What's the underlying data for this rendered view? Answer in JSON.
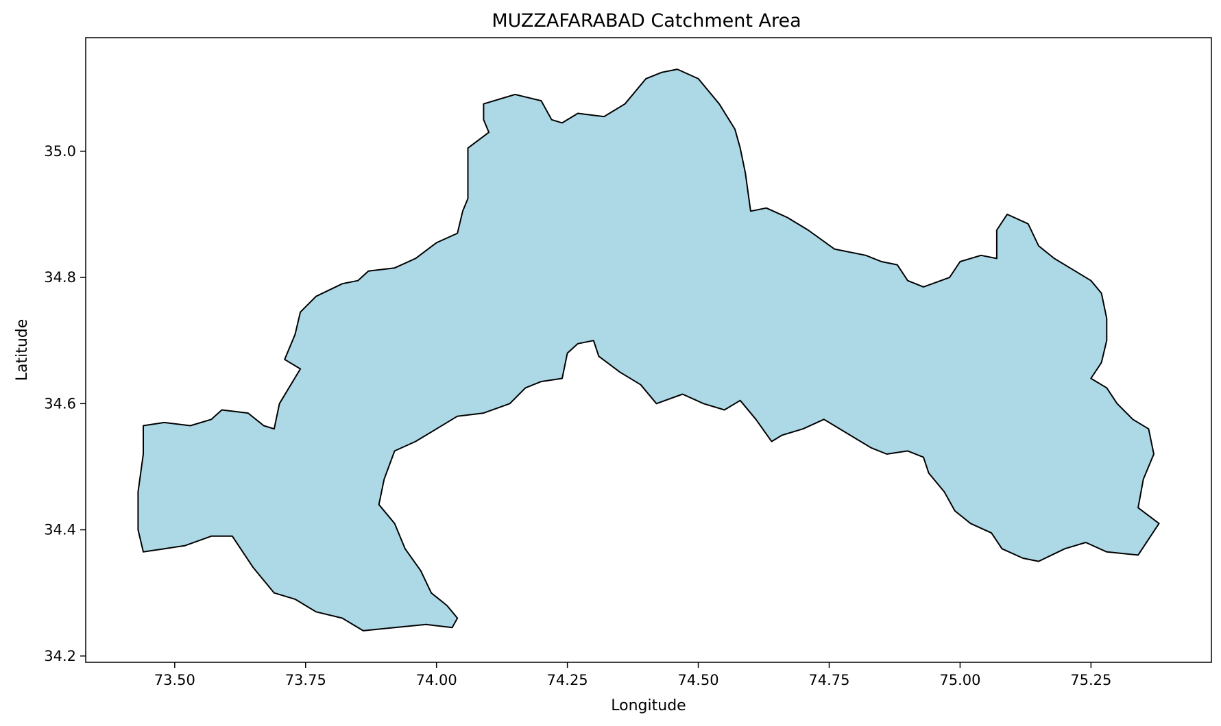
{
  "chart_data": {
    "type": "map",
    "title": "MUZZAFARABAD Catchment Area",
    "xlabel": "Longitude",
    "ylabel": "Latitude",
    "xlim": [
      73.33,
      75.48
    ],
    "ylim": [
      34.19,
      35.18
    ],
    "xticks": [
      73.5,
      73.75,
      74.0,
      74.25,
      74.5,
      74.75,
      75.0,
      75.25
    ],
    "xtick_labels": [
      "73.50",
      "73.75",
      "74.00",
      "74.25",
      "74.50",
      "74.75",
      "75.00",
      "75.25"
    ],
    "yticks": [
      34.2,
      34.4,
      34.6,
      34.8,
      35.0
    ],
    "ytick_labels": [
      "34.2",
      "34.4",
      "34.6",
      "34.8",
      "35.0"
    ],
    "grid": false,
    "fill_color": "#add8e6",
    "edge_color": "#000000",
    "boundary": [
      [
        73.44,
        34.565
      ],
      [
        73.48,
        34.57
      ],
      [
        73.53,
        34.565
      ],
      [
        73.57,
        34.575
      ],
      [
        73.59,
        34.59
      ],
      [
        73.64,
        34.585
      ],
      [
        73.67,
        34.565
      ],
      [
        73.69,
        34.56
      ],
      [
        73.7,
        34.6
      ],
      [
        73.74,
        34.655
      ],
      [
        73.71,
        34.67
      ],
      [
        73.73,
        34.71
      ],
      [
        73.74,
        34.745
      ],
      [
        73.77,
        34.77
      ],
      [
        73.82,
        34.79
      ],
      [
        73.85,
        34.795
      ],
      [
        73.87,
        34.81
      ],
      [
        73.92,
        34.815
      ],
      [
        73.96,
        34.83
      ],
      [
        74.0,
        34.855
      ],
      [
        74.04,
        34.87
      ],
      [
        74.05,
        34.905
      ],
      [
        74.06,
        34.925
      ],
      [
        74.06,
        35.005
      ],
      [
        74.1,
        35.03
      ],
      [
        74.09,
        35.05
      ],
      [
        74.09,
        35.075
      ],
      [
        74.13,
        35.085
      ],
      [
        74.15,
        35.09
      ],
      [
        74.2,
        35.08
      ],
      [
        74.22,
        35.05
      ],
      [
        74.24,
        35.045
      ],
      [
        74.27,
        35.06
      ],
      [
        74.32,
        35.055
      ],
      [
        74.36,
        35.075
      ],
      [
        74.4,
        35.115
      ],
      [
        74.43,
        35.125
      ],
      [
        74.46,
        35.13
      ],
      [
        74.5,
        35.115
      ],
      [
        74.54,
        35.075
      ],
      [
        74.57,
        35.035
      ],
      [
        74.58,
        35.005
      ],
      [
        74.59,
        34.965
      ],
      [
        74.6,
        34.905
      ],
      [
        74.63,
        34.91
      ],
      [
        74.67,
        34.895
      ],
      [
        74.71,
        34.875
      ],
      [
        74.76,
        34.845
      ],
      [
        74.82,
        34.835
      ],
      [
        74.85,
        34.825
      ],
      [
        74.88,
        34.82
      ],
      [
        74.9,
        34.795
      ],
      [
        74.93,
        34.785
      ],
      [
        74.98,
        34.8
      ],
      [
        75.0,
        34.825
      ],
      [
        75.04,
        34.835
      ],
      [
        75.07,
        34.83
      ],
      [
        75.07,
        34.875
      ],
      [
        75.09,
        34.9
      ],
      [
        75.13,
        34.885
      ],
      [
        75.15,
        34.85
      ],
      [
        75.18,
        34.83
      ],
      [
        75.22,
        34.81
      ],
      [
        75.25,
        34.795
      ],
      [
        75.27,
        34.775
      ],
      [
        75.28,
        34.735
      ],
      [
        75.28,
        34.7
      ],
      [
        75.27,
        34.665
      ],
      [
        75.25,
        34.64
      ],
      [
        75.28,
        34.625
      ],
      [
        75.3,
        34.6
      ],
      [
        75.33,
        34.575
      ],
      [
        75.36,
        34.56
      ],
      [
        75.37,
        34.52
      ],
      [
        75.35,
        34.48
      ],
      [
        75.34,
        34.435
      ],
      [
        75.38,
        34.41
      ],
      [
        75.34,
        34.36
      ],
      [
        75.28,
        34.365
      ],
      [
        75.24,
        34.38
      ],
      [
        75.2,
        34.37
      ],
      [
        75.15,
        34.35
      ],
      [
        75.12,
        34.355
      ],
      [
        75.08,
        34.37
      ],
      [
        75.06,
        34.395
      ],
      [
        75.02,
        34.41
      ],
      [
        74.99,
        34.43
      ],
      [
        74.97,
        34.46
      ],
      [
        74.94,
        34.49
      ],
      [
        74.93,
        34.515
      ],
      [
        74.9,
        34.525
      ],
      [
        74.86,
        34.52
      ],
      [
        74.83,
        34.53
      ],
      [
        74.8,
        34.545
      ],
      [
        74.76,
        34.565
      ],
      [
        74.74,
        34.575
      ],
      [
        74.7,
        34.56
      ],
      [
        74.66,
        34.55
      ],
      [
        74.64,
        34.54
      ],
      [
        74.61,
        34.575
      ],
      [
        74.58,
        34.605
      ],
      [
        74.55,
        34.59
      ],
      [
        74.51,
        34.6
      ],
      [
        74.47,
        34.615
      ],
      [
        74.42,
        34.6
      ],
      [
        74.39,
        34.63
      ],
      [
        74.35,
        34.65
      ],
      [
        74.31,
        34.675
      ],
      [
        74.3,
        34.7
      ],
      [
        74.27,
        34.695
      ],
      [
        74.25,
        34.68
      ],
      [
        74.24,
        34.64
      ],
      [
        74.2,
        34.635
      ],
      [
        74.17,
        34.625
      ],
      [
        74.14,
        34.6
      ],
      [
        74.09,
        34.585
      ],
      [
        74.04,
        34.58
      ],
      [
        74.0,
        34.56
      ],
      [
        73.96,
        34.54
      ],
      [
        73.92,
        34.525
      ],
      [
        73.9,
        34.48
      ],
      [
        73.89,
        34.44
      ],
      [
        73.92,
        34.41
      ],
      [
        73.94,
        34.37
      ],
      [
        73.97,
        34.335
      ],
      [
        73.99,
        34.3
      ],
      [
        74.02,
        34.28
      ],
      [
        74.04,
        34.26
      ],
      [
        74.03,
        34.245
      ],
      [
        73.98,
        34.25
      ],
      [
        73.92,
        34.245
      ],
      [
        73.86,
        34.24
      ],
      [
        73.82,
        34.26
      ],
      [
        73.77,
        34.27
      ],
      [
        73.73,
        34.29
      ],
      [
        73.69,
        34.3
      ],
      [
        73.65,
        34.34
      ],
      [
        73.61,
        34.39
      ],
      [
        73.57,
        34.39
      ],
      [
        73.52,
        34.375
      ],
      [
        73.48,
        34.37
      ],
      [
        73.44,
        34.365
      ],
      [
        73.43,
        34.4
      ],
      [
        73.43,
        34.46
      ],
      [
        73.44,
        34.52
      ]
    ]
  }
}
